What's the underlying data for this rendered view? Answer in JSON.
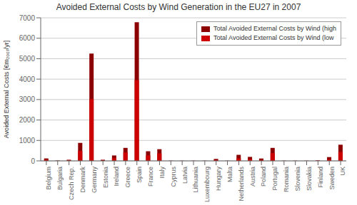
{
  "chart_data": {
    "type": "bar",
    "title": "Avoided External Costs by Wind Generation in the EU27 in 2007",
    "ylabel": "Avoided External Costs [€m₂₀₀₇/yr]",
    "categories": [
      "Belgium",
      "Bulgaria",
      "Czech Rep.",
      "Denmark",
      "Germany",
      "Estonia",
      "Ireland",
      "Greece",
      "Spain",
      "France",
      "Italy",
      "Cyprus",
      "Latvia",
      "Lithuania",
      "Luxembourg",
      "Hungary",
      "Malta",
      "Netherlands",
      "Austria",
      "Poland",
      "Portugal",
      "Romania",
      "Slovenia",
      "Slovakia",
      "Finland",
      "Sweden",
      "UK"
    ],
    "series": [
      {
        "name": "Total Avoided External Costs by Wind (high",
        "color": "#8b0000",
        "values": [
          120,
          15,
          55,
          880,
          5250,
          55,
          265,
          635,
          6780,
          470,
          570,
          8,
          8,
          8,
          8,
          95,
          8,
          295,
          195,
          115,
          635,
          8,
          8,
          8,
          25,
          185,
          790
        ]
      },
      {
        "name": "Total Avoided External Costs by Wind (low",
        "color": "#cc0000",
        "values": [
          55,
          5,
          20,
          490,
          3020,
          20,
          130,
          415,
          3950,
          270,
          365,
          3,
          3,
          3,
          3,
          45,
          3,
          125,
          85,
          48,
          380,
          3,
          3,
          3,
          6,
          75,
          440
        ]
      }
    ],
    "ylim": [
      0,
      7000
    ],
    "yticks": [
      0,
      1000,
      2000,
      3000,
      4000,
      5000,
      6000,
      7000
    ],
    "grid": true,
    "legend": "upper right"
  }
}
